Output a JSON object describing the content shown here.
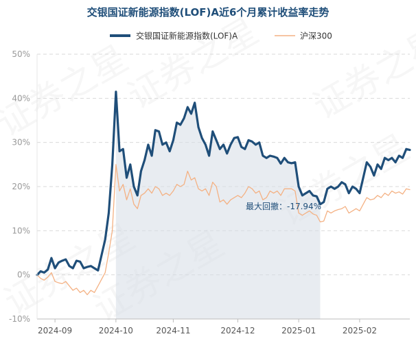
{
  "chart_data": {
    "type": "line",
    "title": "交银国证新能源指数(LOF)A近6个月累计收益率走势",
    "y_unit": "%",
    "ylim": [
      -10,
      50
    ],
    "yticks": [
      "50%",
      "40%",
      "30%",
      "20%",
      "10%",
      "0%",
      "-10%"
    ],
    "ytick_values": [
      50,
      40,
      30,
      20,
      10,
      0,
      -10
    ],
    "xticks": [
      "2024-09",
      "2024-10",
      "2024-11",
      "2024-12",
      "2025-01",
      "2025-02"
    ],
    "grid": true,
    "legend_position": "top",
    "series": [
      {
        "name": "交银国证新能源指数(LOF)A",
        "color": "#1f4e79",
        "values": [
          0,
          0.8,
          0.5,
          1.2,
          3.8,
          1.5,
          2.8,
          3.2,
          3.5,
          2.0,
          1.5,
          3.2,
          3.0,
          1.5,
          1.8,
          2.0,
          1.5,
          1.0,
          4.5,
          8.0,
          14.0,
          25.0,
          41.5,
          28.0,
          28.5,
          22.0,
          25.0,
          20.0,
          18.0,
          23.5,
          26.0,
          29.5,
          27.0,
          32.8,
          32.5,
          29.5,
          30.0,
          28.0,
          30.5,
          34.5,
          34.0,
          35.5,
          38.0,
          36.5,
          39.0,
          33.5,
          31.0,
          29.5,
          27.0,
          32.5,
          30.5,
          28.5,
          29.5,
          27.5,
          29.5,
          31.0,
          31.2,
          29.0,
          28.5,
          30.5,
          30.2,
          29.5,
          30.0,
          27.0,
          26.5,
          27.0,
          26.8,
          26.5,
          25.2,
          26.5,
          25.5,
          25.3,
          25.5,
          20.0,
          18.0,
          18.5,
          19.0,
          18.0,
          17.8,
          16.0,
          16.5,
          19.5,
          20.0,
          19.5,
          20.0,
          21.0,
          20.5,
          18.5,
          20.0,
          19.5,
          18.5,
          22.0,
          25.5,
          24.5,
          22.5,
          25.0,
          24.0,
          26.5,
          26.0,
          26.5,
          25.5,
          27.0,
          26.5,
          28.5,
          28.3
        ]
      },
      {
        "name": "沪深300",
        "color": "#f4b183",
        "values": [
          0,
          -0.8,
          -1.2,
          -0.5,
          0.5,
          -1.5,
          -1.8,
          -2.0,
          -1.5,
          -2.5,
          -3.5,
          -3.0,
          -4.0,
          -3.5,
          -4.5,
          -3.5,
          -4.0,
          -2.5,
          -1.0,
          0.5,
          5.0,
          10.0,
          25.0,
          19.0,
          20.5,
          17.0,
          19.5,
          16.0,
          15.0,
          18.0,
          18.5,
          19.5,
          18.5,
          20.0,
          19.5,
          18.0,
          18.5,
          18.0,
          19.0,
          20.5,
          20.0,
          20.5,
          23.5,
          21.5,
          22.0,
          19.5,
          19.0,
          19.5,
          18.0,
          21.0,
          20.0,
          16.5,
          17.0,
          16.0,
          17.0,
          17.5,
          18.0,
          17.5,
          18.5,
          20.0,
          19.5,
          18.5,
          19.0,
          17.0,
          17.5,
          19.0,
          18.5,
          19.0,
          18.0,
          19.5,
          19.5,
          19.5,
          19.0,
          14.0,
          13.5,
          14.0,
          14.5,
          13.8,
          13.5,
          12.0,
          12.2,
          14.5,
          14.0,
          14.5,
          14.8,
          15.0,
          15.5,
          14.0,
          14.5,
          15.0,
          14.5,
          16.0,
          17.5,
          17.0,
          17.2,
          18.0,
          17.5,
          18.5,
          18.0,
          19.0,
          18.5,
          18.8,
          18.3,
          19.5,
          19.3
        ]
      }
    ],
    "drawdown": {
      "label": "最大回撤：-17.94%",
      "start_index": 22,
      "end_index": 79
    },
    "watermark": "证券之星"
  }
}
